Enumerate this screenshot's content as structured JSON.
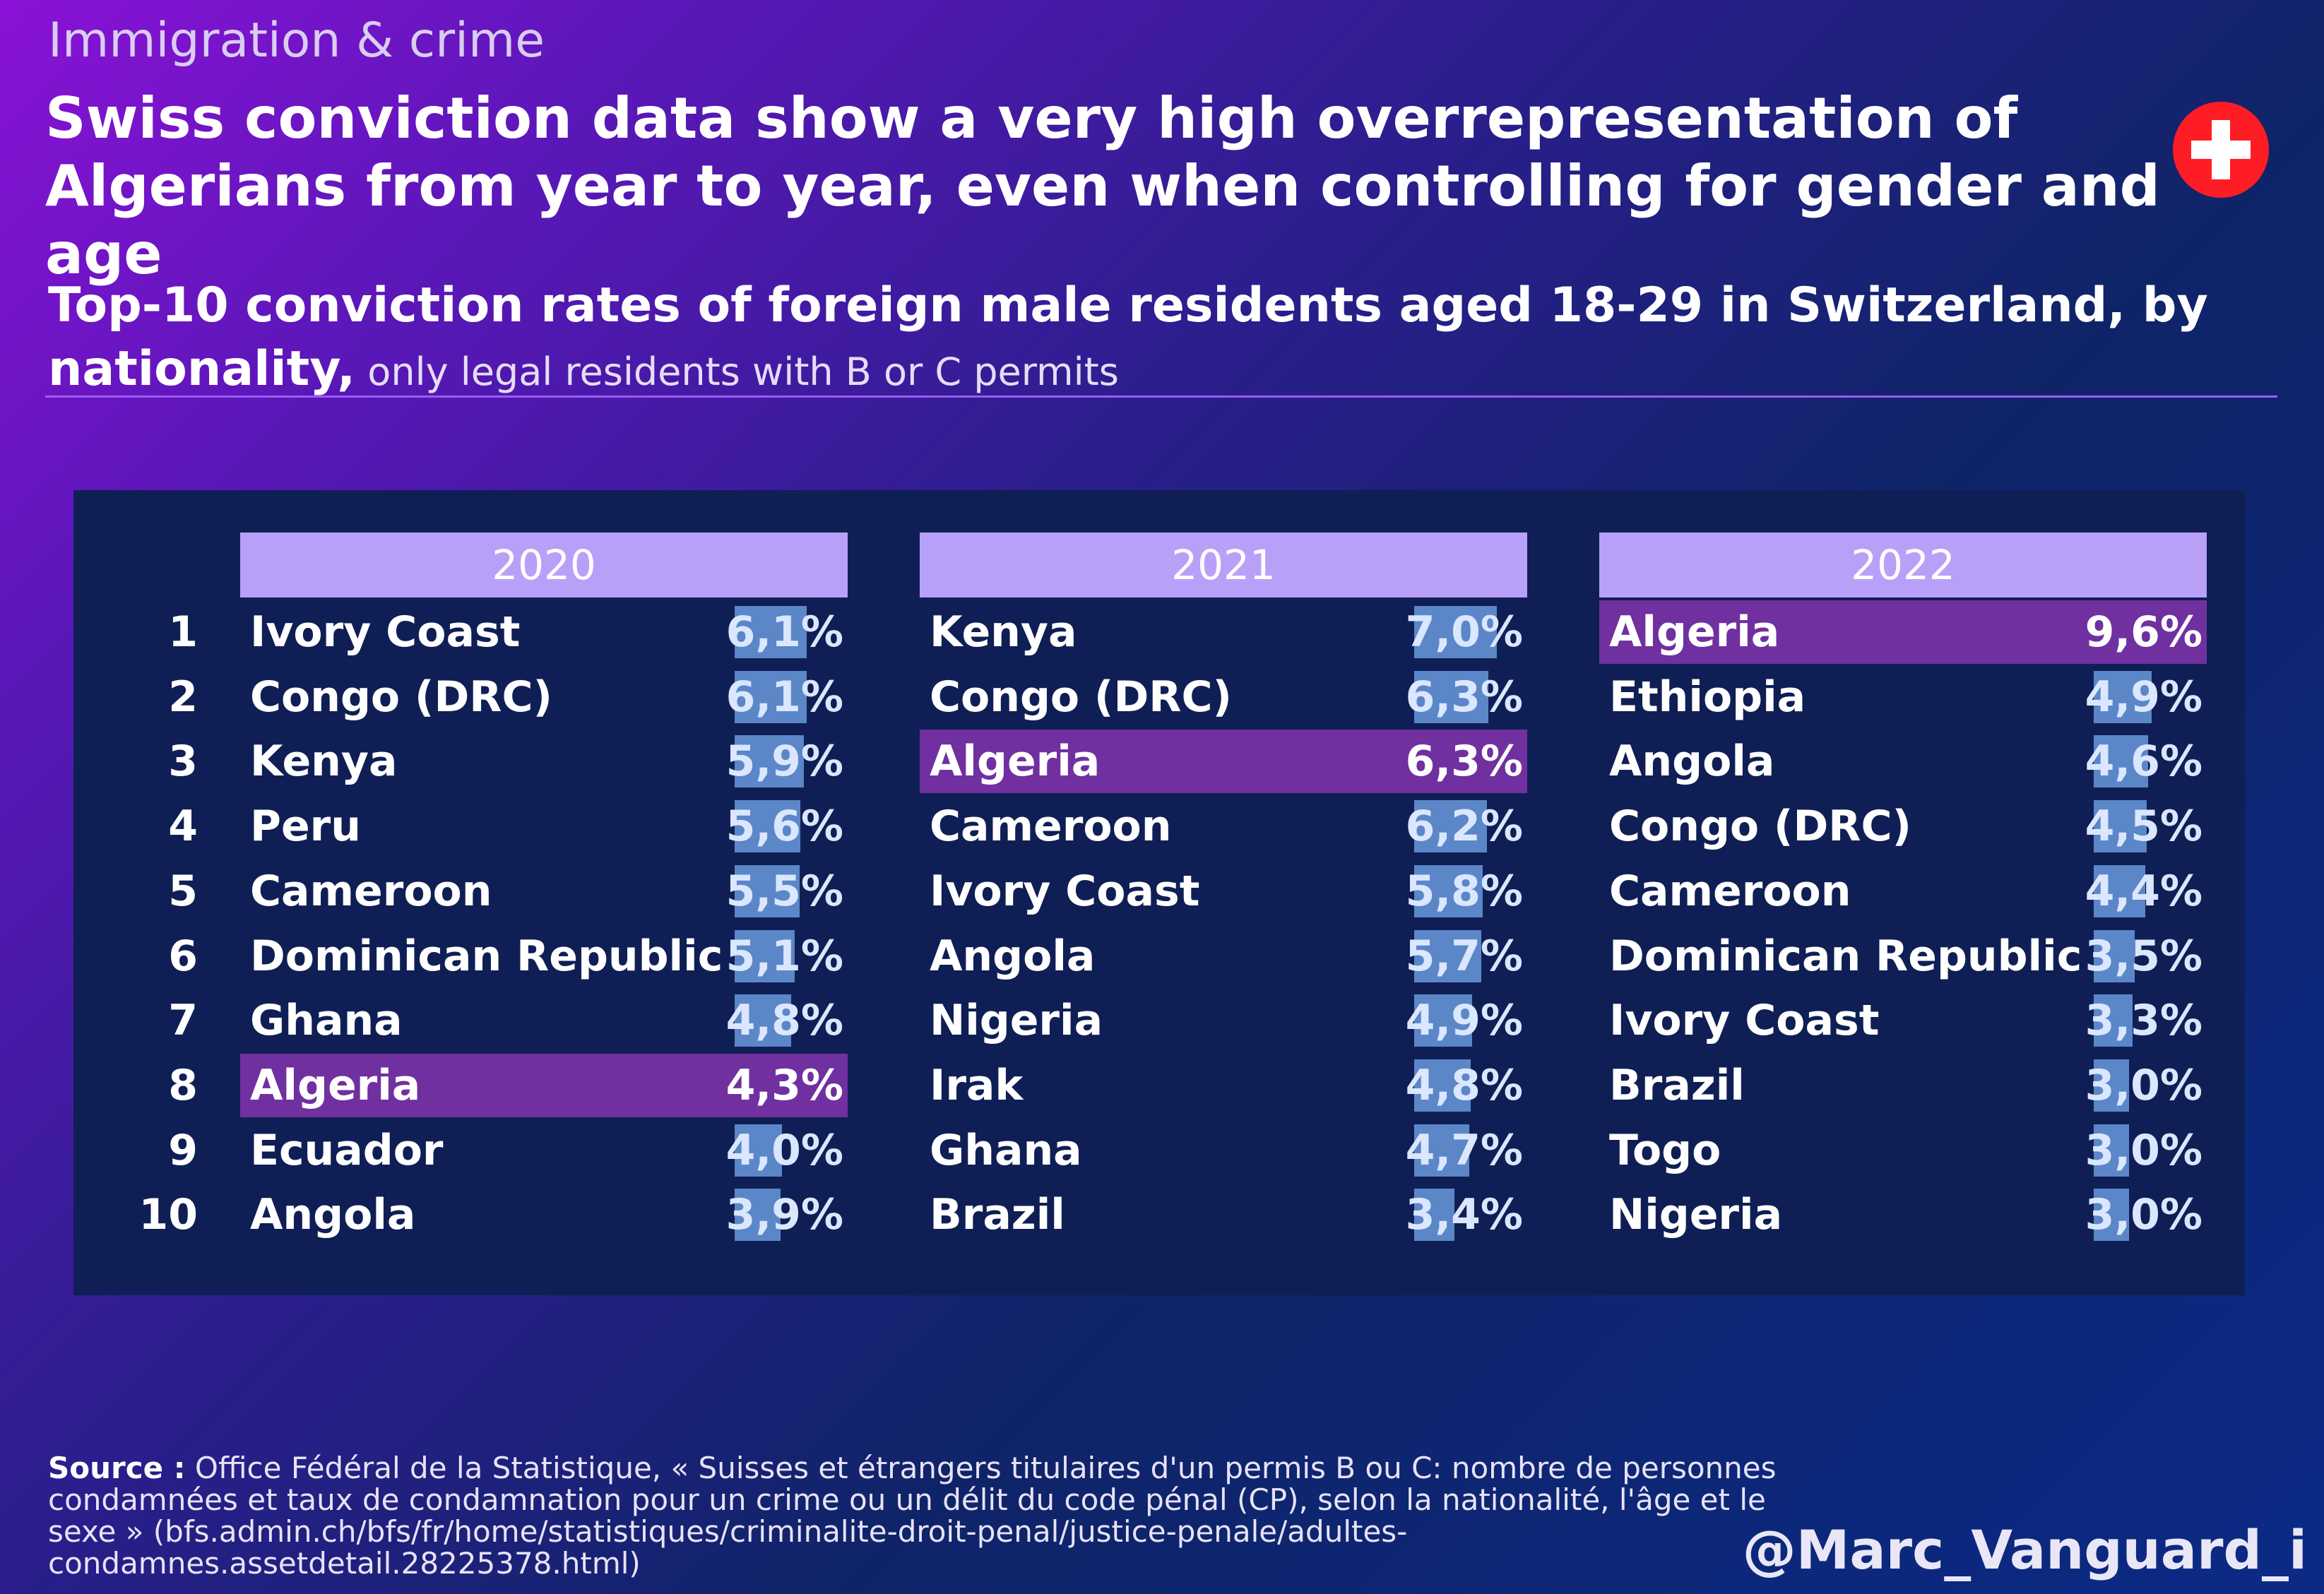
{
  "kicker": "Immigration & crime",
  "headline": "Swiss conviction data show a very high overrepresentation of Algerians from year to year, even when controlling for gender and age",
  "flag_icon": "swiss-flag-icon",
  "subtitle": {
    "main": "Top-10 conviction rates of foreign male residents aged 18-29 in Switzerland, by nationality,",
    "note": " only legal residents with B or C permits"
  },
  "colors": {
    "header": "#b8a0f8",
    "highlight": "#7030a0",
    "bar": "#5b87c8",
    "panel": "#0f1f55"
  },
  "ranks": [
    "1",
    "2",
    "3",
    "4",
    "5",
    "6",
    "7",
    "8",
    "9",
    "10"
  ],
  "chart_data": {
    "type": "table",
    "highlight_country": "Algeria",
    "bar_max": 9.6,
    "years": [
      {
        "year": "2020",
        "rows": [
          {
            "country": "Ivory Coast",
            "value": 6.1,
            "label": "6,1%"
          },
          {
            "country": "Congo (DRC)",
            "value": 6.1,
            "label": "6,1%"
          },
          {
            "country": "Kenya",
            "value": 5.9,
            "label": "5,9%"
          },
          {
            "country": "Peru",
            "value": 5.6,
            "label": "5,6%"
          },
          {
            "country": "Cameroon",
            "value": 5.5,
            "label": "5,5%"
          },
          {
            "country": "Dominican Republic",
            "value": 5.1,
            "label": "5,1%"
          },
          {
            "country": "Ghana",
            "value": 4.8,
            "label": "4,8%"
          },
          {
            "country": "Algeria",
            "value": 4.3,
            "label": "4,3%"
          },
          {
            "country": "Ecuador",
            "value": 4.0,
            "label": "4,0%"
          },
          {
            "country": "Angola",
            "value": 3.9,
            "label": "3,9%"
          }
        ]
      },
      {
        "year": "2021",
        "rows": [
          {
            "country": "Kenya",
            "value": 7.0,
            "label": "7,0%"
          },
          {
            "country": "Congo (DRC)",
            "value": 6.3,
            "label": "6,3%"
          },
          {
            "country": "Algeria",
            "value": 6.3,
            "label": "6,3%"
          },
          {
            "country": "Cameroon",
            "value": 6.2,
            "label": "6,2%"
          },
          {
            "country": "Ivory Coast",
            "value": 5.8,
            "label": "5,8%"
          },
          {
            "country": "Angola",
            "value": 5.7,
            "label": "5,7%"
          },
          {
            "country": "Nigeria",
            "value": 4.9,
            "label": "4,9%"
          },
          {
            "country": "Irak",
            "value": 4.8,
            "label": "4,8%"
          },
          {
            "country": "Ghana",
            "value": 4.7,
            "label": "4,7%"
          },
          {
            "country": "Brazil",
            "value": 3.4,
            "label": "3,4%"
          }
        ]
      },
      {
        "year": "2022",
        "rows": [
          {
            "country": "Algeria",
            "value": 9.6,
            "label": "9,6%"
          },
          {
            "country": "Ethiopia",
            "value": 4.9,
            "label": "4,9%"
          },
          {
            "country": "Angola",
            "value": 4.6,
            "label": "4,6%"
          },
          {
            "country": "Congo (DRC)",
            "value": 4.5,
            "label": "4,5%"
          },
          {
            "country": "Cameroon",
            "value": 4.4,
            "label": "4,4%"
          },
          {
            "country": "Dominican Republic",
            "value": 3.5,
            "label": "3,5%"
          },
          {
            "country": "Ivory Coast",
            "value": 3.3,
            "label": "3,3%"
          },
          {
            "country": "Brazil",
            "value": 3.0,
            "label": "3,0%"
          },
          {
            "country": "Togo",
            "value": 3.0,
            "label": "3,0%"
          },
          {
            "country": "Nigeria",
            "value": 3.0,
            "label": "3,0%"
          }
        ]
      }
    ]
  },
  "source": {
    "label": "Source :",
    "text": " Office Fédéral de la Statistique, « Suisses et étrangers titulaires d'un permis B ou C: nombre de personnes condamnées et taux de condamnation pour un crime ou un délit du code pénal (CP), selon la nationalité, l'âge et le sexe » (bfs.admin.ch/bfs/fr/home/statistiques/criminalite-droit-penal/justice-penale/adultes-condamnes.assetdetail.28225378.html)"
  },
  "handle": "@Marc_Vanguard_i"
}
